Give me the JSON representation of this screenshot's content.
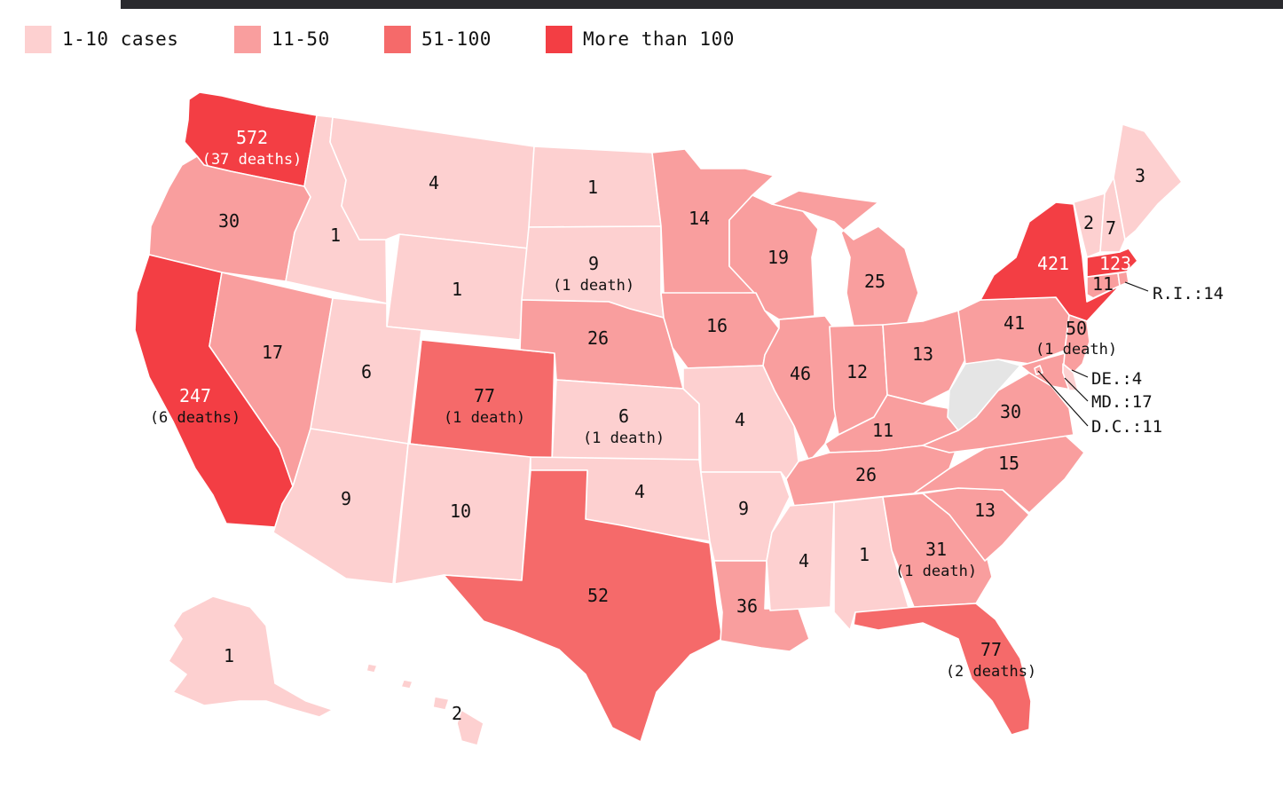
{
  "colors": {
    "c1": "#fdd0d0",
    "c2": "#f99e9e",
    "c3": "#f56a6a",
    "c4": "#f33e44",
    "nodata": "#e5e5e5"
  },
  "legend": [
    {
      "label": "1-10 cases",
      "color": "#fdd0d0"
    },
    {
      "label": "11-50",
      "color": "#f99e9e"
    },
    {
      "label": "51-100",
      "color": "#f56a6a"
    },
    {
      "label": "More than 100",
      "color": "#f33e44"
    }
  ],
  "states": {
    "WA": {
      "cases": "572",
      "deaths": "(37 deaths)",
      "color": "#f33e44"
    },
    "OR": {
      "cases": "30",
      "color": "#f99e9e"
    },
    "CA": {
      "cases": "247",
      "deaths": "(6 deaths)",
      "color": "#f33e44"
    },
    "ID": {
      "cases": "1",
      "color": "#fdd0d0"
    },
    "NV": {
      "cases": "17",
      "color": "#f99e9e"
    },
    "MT": {
      "cases": "4",
      "color": "#fdd0d0"
    },
    "WY": {
      "cases": "1",
      "color": "#fdd0d0"
    },
    "UT": {
      "cases": "6",
      "color": "#fdd0d0"
    },
    "AZ": {
      "cases": "9",
      "color": "#fdd0d0"
    },
    "CO": {
      "cases": "77",
      "deaths": "(1 death)",
      "color": "#f56a6a"
    },
    "NM": {
      "cases": "10",
      "color": "#fdd0d0"
    },
    "ND": {
      "cases": "1",
      "color": "#fdd0d0"
    },
    "SD": {
      "cases": "9",
      "deaths": "(1 death)",
      "color": "#fdd0d0"
    },
    "NE": {
      "cases": "26",
      "color": "#f99e9e"
    },
    "KS": {
      "cases": "6",
      "deaths": "(1 death)",
      "color": "#fdd0d0"
    },
    "OK": {
      "cases": "4",
      "color": "#fdd0d0"
    },
    "TX": {
      "cases": "52",
      "color": "#f56a6a"
    },
    "MN": {
      "cases": "14",
      "color": "#f99e9e"
    },
    "IA": {
      "cases": "16",
      "color": "#f99e9e"
    },
    "MO": {
      "cases": "4",
      "color": "#fdd0d0"
    },
    "AR": {
      "cases": "9",
      "color": "#fdd0d0"
    },
    "LA": {
      "cases": "36",
      "color": "#f99e9e"
    },
    "WI": {
      "cases": "19",
      "color": "#f99e9e"
    },
    "IL": {
      "cases": "46",
      "color": "#f99e9e"
    },
    "MI": {
      "cases": "25",
      "color": "#f99e9e"
    },
    "IN": {
      "cases": "12",
      "color": "#f99e9e"
    },
    "OH": {
      "cases": "13",
      "color": "#f99e9e"
    },
    "KY": {
      "cases": "11",
      "color": "#f99e9e"
    },
    "TN": {
      "cases": "26",
      "color": "#f99e9e"
    },
    "MS": {
      "cases": "4",
      "color": "#fdd0d0"
    },
    "AL": {
      "cases": "1",
      "color": "#fdd0d0"
    },
    "GA": {
      "cases": "31",
      "deaths": "(1 death)",
      "color": "#f99e9e"
    },
    "FL": {
      "cases": "77",
      "deaths": "(2 deaths)",
      "color": "#f56a6a"
    },
    "SC": {
      "cases": "13",
      "color": "#f99e9e"
    },
    "NC": {
      "cases": "15",
      "color": "#f99e9e"
    },
    "VA": {
      "cases": "30",
      "color": "#f99e9e"
    },
    "WV": {
      "cases": "",
      "color": "#e5e5e5"
    },
    "PA": {
      "cases": "41",
      "color": "#f99e9e"
    },
    "NY": {
      "cases": "421",
      "color": "#f33e44"
    },
    "NJ": {
      "cases": "50",
      "deaths": "(1 death)",
      "color": "#f99e9e"
    },
    "VT": {
      "cases": "2",
      "color": "#fdd0d0"
    },
    "NH": {
      "cases": "7",
      "color": "#fdd0d0"
    },
    "ME": {
      "cases": "3",
      "color": "#fdd0d0"
    },
    "MA": {
      "cases": "123",
      "color": "#f33e44"
    },
    "CT": {
      "cases": "11",
      "color": "#f99e9e"
    },
    "RI": {
      "label": "R.I.:14",
      "color": "#f99e9e"
    },
    "DE": {
      "label": "DE.:4",
      "color": "#fdd0d0"
    },
    "MD": {
      "label": "MD.:17",
      "color": "#f99e9e"
    },
    "DC": {
      "label": "D.C.:11",
      "color": "#f99e9e"
    },
    "AK": {
      "cases": "1",
      "color": "#fdd0d0"
    },
    "HI": {
      "cases": "2",
      "color": "#fdd0d0"
    }
  }
}
